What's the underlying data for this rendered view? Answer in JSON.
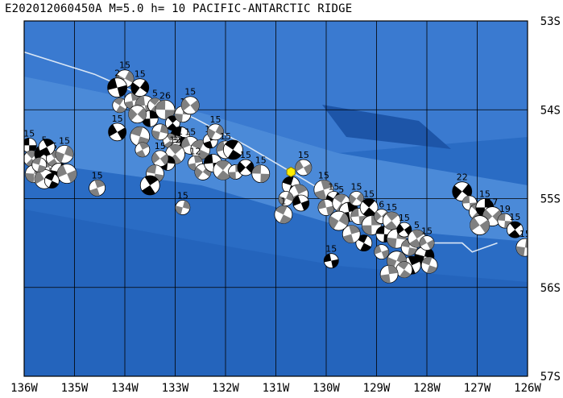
{
  "title": "E202012060450A M=5.0 h= 10 PACIFIC-ANTARCTIC RIDGE",
  "map": {
    "lon_min": -136,
    "lon_max": -126,
    "lat_min": -57,
    "lat_max": -53,
    "lon_labels": [
      "136W",
      "135W",
      "134W",
      "133W",
      "132W",
      "131W",
      "130W",
      "129W",
      "128W",
      "127W",
      "126W"
    ],
    "lat_labels": [
      "53S",
      "54S",
      "55S",
      "56S",
      "57S"
    ],
    "colors": {
      "deep": "#1f5fb8",
      "mid": "#3f7fd0",
      "ridge": "#5c96dc",
      "trough": "#1d4f9e",
      "grid": "#000000",
      "plate_boundary": "#d9e6f5",
      "epicenter": "#ffee00"
    }
  },
  "epicenter": {
    "lon": -130.7,
    "lat": -54.7
  },
  "plate_boundary": [
    [
      -136.0,
      -53.35
    ],
    [
      -134.6,
      -53.6
    ],
    [
      -133.6,
      -53.85
    ],
    [
      -132.6,
      -54.1
    ],
    [
      -131.6,
      -54.4
    ],
    [
      -130.7,
      -54.7
    ],
    [
      -130.1,
      -54.9
    ],
    [
      -129.3,
      -55.2
    ],
    [
      -128.6,
      -55.4
    ],
    [
      -128.0,
      -55.5
    ],
    [
      -127.3,
      -55.5
    ],
    [
      -127.1,
      -55.6
    ],
    [
      -126.6,
      -55.5
    ]
  ],
  "events": [
    {
      "lon": -135.9,
      "lat": -54.4,
      "label": "15"
    },
    {
      "lon": -135.85,
      "lat": -54.55,
      "label": ""
    },
    {
      "lon": -135.8,
      "lat": -54.72,
      "label": ""
    },
    {
      "lon": -135.6,
      "lat": -54.5,
      "label": "5"
    },
    {
      "lon": -135.5,
      "lat": -54.65,
      "label": ""
    },
    {
      "lon": -135.4,
      "lat": -54.55,
      "label": "5"
    },
    {
      "lon": -135.3,
      "lat": -54.7,
      "label": ""
    },
    {
      "lon": -135.6,
      "lat": -54.78,
      "label": ""
    },
    {
      "lon": -135.7,
      "lat": -54.62,
      "label": ""
    },
    {
      "lon": -135.55,
      "lat": -54.42,
      "label": ""
    },
    {
      "lon": -135.2,
      "lat": -54.5,
      "label": "15"
    },
    {
      "lon": -135.15,
      "lat": -54.72,
      "label": ""
    },
    {
      "lon": -135.45,
      "lat": -54.8,
      "label": ""
    },
    {
      "lon": -134.55,
      "lat": -54.88,
      "label": "15"
    },
    {
      "lon": -134.0,
      "lat": -53.65,
      "label": "15"
    },
    {
      "lon": -134.15,
      "lat": -53.75,
      "label": "2"
    },
    {
      "lon": -134.1,
      "lat": -53.95,
      "label": ""
    },
    {
      "lon": -133.85,
      "lat": -53.9,
      "label": ""
    },
    {
      "lon": -133.7,
      "lat": -53.75,
      "label": "15"
    },
    {
      "lon": -133.6,
      "lat": -53.95,
      "label": ""
    },
    {
      "lon": -133.4,
      "lat": -53.95,
      "label": "5"
    },
    {
      "lon": -133.5,
      "lat": -54.1,
      "label": ""
    },
    {
      "lon": -133.75,
      "lat": -54.05,
      "label": ""
    },
    {
      "lon": -133.2,
      "lat": -54.0,
      "label": "26"
    },
    {
      "lon": -133.05,
      "lat": -54.15,
      "label": ""
    },
    {
      "lon": -132.85,
      "lat": -54.05,
      "label": "1"
    },
    {
      "lon": -132.7,
      "lat": -53.95,
      "label": "15"
    },
    {
      "lon": -132.9,
      "lat": -54.3,
      "label": ""
    },
    {
      "lon": -133.1,
      "lat": -54.35,
      "label": ""
    },
    {
      "lon": -133.3,
      "lat": -54.25,
      "label": ""
    },
    {
      "lon": -134.15,
      "lat": -54.25,
      "label": "15"
    },
    {
      "lon": -133.7,
      "lat": -54.3,
      "label": ""
    },
    {
      "lon": -133.65,
      "lat": -54.45,
      "label": ""
    },
    {
      "lon": -132.95,
      "lat": -54.45,
      "label": "15"
    },
    {
      "lon": -132.7,
      "lat": -54.4,
      "label": "15"
    },
    {
      "lon": -132.5,
      "lat": -54.45,
      "label": ""
    },
    {
      "lon": -132.3,
      "lat": -54.35,
      "label": "18"
    },
    {
      "lon": -132.2,
      "lat": -54.25,
      "label": "15"
    },
    {
      "lon": -132.0,
      "lat": -54.45,
      "label": "15"
    },
    {
      "lon": -131.85,
      "lat": -54.45,
      "label": ""
    },
    {
      "lon": -132.6,
      "lat": -54.6,
      "label": "12"
    },
    {
      "lon": -132.45,
      "lat": -54.7,
      "label": ""
    },
    {
      "lon": -132.25,
      "lat": -54.6,
      "label": ""
    },
    {
      "lon": -132.05,
      "lat": -54.68,
      "label": ""
    },
    {
      "lon": -131.8,
      "lat": -54.7,
      "label": ""
    },
    {
      "lon": -131.6,
      "lat": -54.65,
      "label": "15"
    },
    {
      "lon": -131.3,
      "lat": -54.72,
      "label": "15"
    },
    {
      "lon": -133.0,
      "lat": -54.5,
      "label": "12"
    },
    {
      "lon": -133.15,
      "lat": -54.6,
      "label": ""
    },
    {
      "lon": -133.3,
      "lat": -54.55,
      "label": "15"
    },
    {
      "lon": -133.4,
      "lat": -54.72,
      "label": ""
    },
    {
      "lon": -133.5,
      "lat": -54.85,
      "label": ""
    },
    {
      "lon": -132.85,
      "lat": -55.1,
      "label": "15"
    },
    {
      "lon": -130.45,
      "lat": -54.65,
      "label": "15"
    },
    {
      "lon": -130.7,
      "lat": -54.85,
      "label": ""
    },
    {
      "lon": -130.55,
      "lat": -54.95,
      "label": ""
    },
    {
      "lon": -130.8,
      "lat": -55.0,
      "label": ""
    },
    {
      "lon": -130.5,
      "lat": -55.05,
      "label": ""
    },
    {
      "lon": -130.85,
      "lat": -55.18,
      "label": "1"
    },
    {
      "lon": -130.05,
      "lat": -54.9,
      "label": "15"
    },
    {
      "lon": -129.85,
      "lat": -55.0,
      "label": "15"
    },
    {
      "lon": -130.0,
      "lat": -55.1,
      "label": ""
    },
    {
      "lon": -129.7,
      "lat": -55.05,
      "label": "5"
    },
    {
      "lon": -129.55,
      "lat": -55.15,
      "label": ""
    },
    {
      "lon": -129.4,
      "lat": -55.0,
      "label": "15"
    },
    {
      "lon": -129.35,
      "lat": -55.2,
      "label": ""
    },
    {
      "lon": -129.15,
      "lat": -55.1,
      "label": "15"
    },
    {
      "lon": -129.1,
      "lat": -55.3,
      "label": ""
    },
    {
      "lon": -128.9,
      "lat": -55.2,
      "label": "6"
    },
    {
      "lon": -128.85,
      "lat": -55.4,
      "label": ""
    },
    {
      "lon": -128.7,
      "lat": -55.25,
      "label": "15"
    },
    {
      "lon": -128.6,
      "lat": -55.45,
      "label": ""
    },
    {
      "lon": -128.45,
      "lat": -55.35,
      "label": "15"
    },
    {
      "lon": -128.35,
      "lat": -55.55,
      "label": ""
    },
    {
      "lon": -128.2,
      "lat": -55.45,
      "label": "5"
    },
    {
      "lon": -128.05,
      "lat": -55.65,
      "label": ""
    },
    {
      "lon": -128.0,
      "lat": -55.5,
      "label": "15"
    },
    {
      "lon": -127.95,
      "lat": -55.75,
      "label": ""
    },
    {
      "lon": -128.3,
      "lat": -55.75,
      "label": ""
    },
    {
      "lon": -128.6,
      "lat": -55.7,
      "label": ""
    },
    {
      "lon": -128.9,
      "lat": -55.6,
      "label": ""
    },
    {
      "lon": -129.25,
      "lat": -55.5,
      "label": ""
    },
    {
      "lon": -129.5,
      "lat": -55.4,
      "label": ""
    },
    {
      "lon": -129.75,
      "lat": -55.25,
      "label": ""
    },
    {
      "lon": -129.9,
      "lat": -55.7,
      "label": "15"
    },
    {
      "lon": -128.45,
      "lat": -55.8,
      "label": ""
    },
    {
      "lon": -128.75,
      "lat": -55.85,
      "label": ""
    },
    {
      "lon": -127.3,
      "lat": -54.92,
      "label": "22"
    },
    {
      "lon": -127.15,
      "lat": -55.05,
      "label": "5"
    },
    {
      "lon": -127.0,
      "lat": -55.15,
      "label": ""
    },
    {
      "lon": -126.85,
      "lat": -55.1,
      "label": "15"
    },
    {
      "lon": -126.7,
      "lat": -55.2,
      "label": "17"
    },
    {
      "lon": -126.45,
      "lat": -55.25,
      "label": "19"
    },
    {
      "lon": -126.25,
      "lat": -55.35,
      "label": "15"
    },
    {
      "lon": -126.05,
      "lat": -55.55,
      "label": "15"
    },
    {
      "lon": -126.95,
      "lat": -55.3,
      "label": ""
    }
  ]
}
